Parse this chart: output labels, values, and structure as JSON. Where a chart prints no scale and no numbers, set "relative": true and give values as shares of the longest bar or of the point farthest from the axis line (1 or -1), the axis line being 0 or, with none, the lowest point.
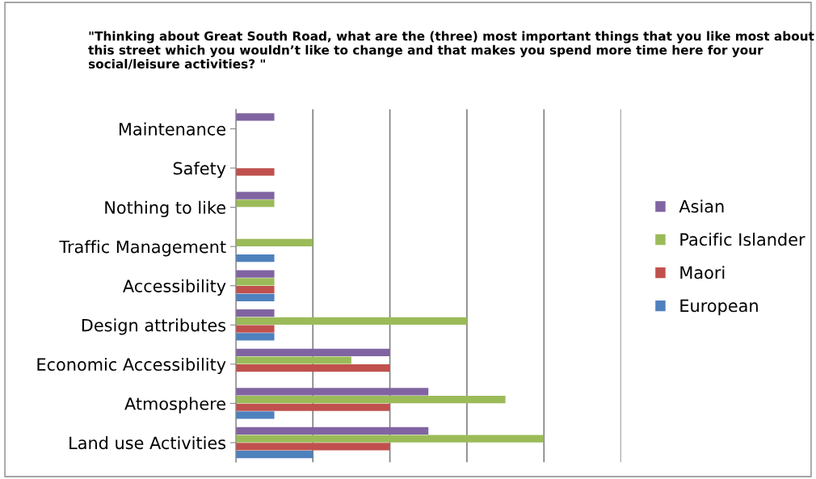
{
  "chart_data": {
    "type": "bar",
    "orientation": "horizontal",
    "relative": true,
    "title": "\"Thinking about Great South Road, what are the (three) most important things that you like most about this street which you wouldn’t like to change and that makes you spend more time here for your social/leisure activities? \"",
    "categories": [
      "Maintenance",
      "Safety",
      "Nothing to like",
      "Traffic Management",
      "Accessibility",
      "Design attributes",
      "Economic Accessibility",
      "Atmosphere",
      "Land use Activities"
    ],
    "series": [
      {
        "name": "Asian",
        "color": "#8064a2",
        "values": [
          0.125,
          0,
          0.125,
          0,
          0.125,
          0.125,
          0.5,
          0.625,
          0.625
        ]
      },
      {
        "name": "Pacific Islander",
        "color": "#9bbb59",
        "values": [
          0,
          0,
          0.125,
          0.25,
          0.125,
          0.75,
          0.375,
          0.875,
          1
        ]
      },
      {
        "name": "Maori",
        "color": "#c0504d",
        "values": [
          0,
          0.125,
          0,
          0,
          0.125,
          0.125,
          0.5,
          0.5,
          0.5
        ]
      },
      {
        "name": "European",
        "color": "#4f81bd",
        "values": [
          0,
          0,
          0,
          0.125,
          0.125,
          0.125,
          0,
          0.125,
          0.25
        ]
      }
    ],
    "grid": "x",
    "legend": "right"
  }
}
